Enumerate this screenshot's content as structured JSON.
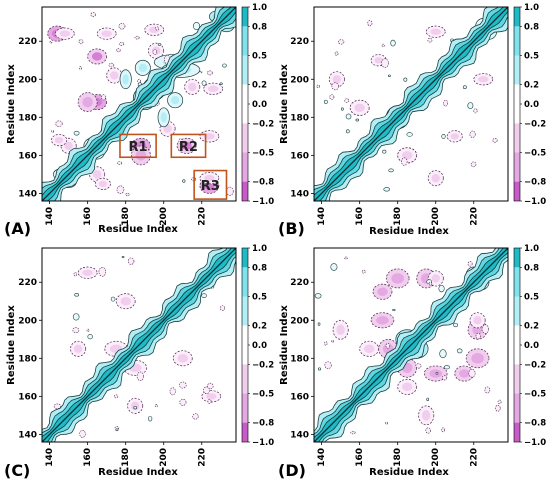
{
  "figure": {
    "panel_letters": [
      "(A)",
      "(B)",
      "(C)",
      "(D)"
    ]
  },
  "colorbar": {
    "ticks": [
      "1.0",
      "0.8",
      "0.5",
      "0.2",
      "0.0",
      "−0.2",
      "−0.5",
      "−0.8",
      "−1.0"
    ],
    "tick_values": [
      1.0,
      0.8,
      0.5,
      0.2,
      0.0,
      -0.2,
      -0.5,
      -0.8,
      -1.0
    ],
    "positive_colors": [
      "#ffffff",
      "#dff7fb",
      "#b2eef5",
      "#7fe2ec",
      "#44d0da",
      "#1fbac6"
    ],
    "negative_colors": [
      "#ffffff",
      "#fbeefa",
      "#f1cdee",
      "#e4a8e2",
      "#d67fd6",
      "#c85bc9"
    ]
  },
  "chart_data": [
    {
      "type": "heatmap",
      "panel": "A",
      "title": "",
      "xlabel": "Residue Index",
      "ylabel": "Residue Index",
      "xlim": [
        136,
        238
      ],
      "ylim": [
        136,
        238
      ],
      "xticks": [
        140,
        160,
        180,
        200,
        220
      ],
      "yticks": [
        140,
        160,
        180,
        200,
        220
      ],
      "colorbar_range": [
        -1.0,
        1.0
      ],
      "regions": [
        {
          "label": "R1",
          "x": [
            177,
            196
          ],
          "y": [
            159,
            171
          ]
        },
        {
          "label": "R2",
          "x": [
            204,
            222
          ],
          "y": [
            159,
            171
          ]
        },
        {
          "label": "R3",
          "x": [
            216,
            233
          ],
          "y": [
            137,
            152
          ]
        }
      ],
      "positive_blobs": [
        {
          "x": 195,
          "y": 195,
          "value": 0.5,
          "sx": 6,
          "sy": 6
        },
        {
          "x": 218,
          "y": 218,
          "value": 0.45,
          "sx": 5,
          "sy": 5
        },
        {
          "x": 172,
          "y": 172,
          "value": 0.4,
          "sx": 5,
          "sy": 5
        },
        {
          "x": 190,
          "y": 190,
          "value": 0.4,
          "sx": 6,
          "sy": 6
        },
        {
          "x": 205,
          "y": 209,
          "value": 0.35,
          "sx": 10,
          "sy": 4
        },
        {
          "x": 228,
          "y": 233,
          "value": 0.4,
          "sx": 4,
          "sy": 3
        },
        {
          "x": 146,
          "y": 150,
          "value": 0.3,
          "sx": 4,
          "sy": 3
        },
        {
          "x": 162,
          "y": 165,
          "value": 0.3,
          "sx": 4,
          "sy": 4
        },
        {
          "x": 206,
          "y": 189,
          "value": 0.3,
          "sx": 4,
          "sy": 4
        },
        {
          "x": 180,
          "y": 200,
          "value": 0.25,
          "sx": 3,
          "sy": 5
        }
      ],
      "negative_blobs": [
        {
          "x": 188,
          "y": 165,
          "value": -0.55,
          "sx": 5,
          "sy": 4
        },
        {
          "x": 212,
          "y": 165,
          "value": -0.5,
          "sx": 5,
          "sy": 4
        },
        {
          "x": 224,
          "y": 144,
          "value": -0.55,
          "sx": 5,
          "sy": 4
        },
        {
          "x": 160,
          "y": 188,
          "value": -0.4,
          "sx": 5,
          "sy": 5
        },
        {
          "x": 148,
          "y": 224,
          "value": -0.35,
          "sx": 5,
          "sy": 3
        },
        {
          "x": 170,
          "y": 224,
          "value": -0.3,
          "sx": 5,
          "sy": 3
        },
        {
          "x": 195,
          "y": 226,
          "value": -0.35,
          "sx": 5,
          "sy": 3
        },
        {
          "x": 150,
          "y": 165,
          "value": -0.35,
          "sx": 4,
          "sy": 4
        },
        {
          "x": 215,
          "y": 196,
          "value": -0.3,
          "sx": 4,
          "sy": 4
        },
        {
          "x": 174,
          "y": 202,
          "value": -0.3,
          "sx": 4,
          "sy": 4
        },
        {
          "x": 168,
          "y": 145,
          "value": -0.3,
          "sx": 4,
          "sy": 3
        },
        {
          "x": 140,
          "y": 140,
          "value": -0.2,
          "sx": 3,
          "sy": 3
        }
      ]
    },
    {
      "type": "heatmap",
      "panel": "B",
      "title": "",
      "xlabel": "Residue Index",
      "ylabel": "Residue Index",
      "xlim": [
        136,
        238
      ],
      "ylim": [
        136,
        238
      ],
      "xticks": [
        140,
        160,
        180,
        200,
        220
      ],
      "yticks": [
        140,
        160,
        180,
        200,
        220
      ],
      "colorbar_range": [
        -1.0,
        1.0
      ],
      "positive_blobs": [
        {
          "x": 180,
          "y": 180,
          "value": 0.45,
          "sx": 6,
          "sy": 6
        },
        {
          "x": 195,
          "y": 195,
          "value": 0.3,
          "sx": 5,
          "sy": 5
        },
        {
          "x": 165,
          "y": 165,
          "value": 0.35,
          "sx": 4,
          "sy": 4
        },
        {
          "x": 225,
          "y": 228,
          "value": 0.3,
          "sx": 4,
          "sy": 4
        }
      ],
      "negative_blobs": [
        {
          "x": 160,
          "y": 185,
          "value": -0.35,
          "sx": 5,
          "sy": 4
        },
        {
          "x": 185,
          "y": 160,
          "value": -0.3,
          "sx": 5,
          "sy": 4
        },
        {
          "x": 200,
          "y": 225,
          "value": -0.3,
          "sx": 5,
          "sy": 3
        },
        {
          "x": 148,
          "y": 200,
          "value": -0.25,
          "sx": 4,
          "sy": 4
        },
        {
          "x": 210,
          "y": 170,
          "value": -0.25,
          "sx": 4,
          "sy": 3
        }
      ]
    },
    {
      "type": "heatmap",
      "panel": "C",
      "title": "",
      "xlabel": "Residue Index",
      "ylabel": "Residue Index",
      "xlim": [
        136,
        238
      ],
      "ylim": [
        136,
        238
      ],
      "xticks": [
        140,
        160,
        180,
        200,
        220
      ],
      "yticks": [
        140,
        160,
        180,
        200,
        220
      ],
      "colorbar_range": [
        -1.0,
        1.0
      ],
      "positive_blobs": [
        {
          "x": 190,
          "y": 190,
          "value": 0.35,
          "sx": 5,
          "sy": 5
        },
        {
          "x": 175,
          "y": 175,
          "value": 0.3,
          "sx": 4,
          "sy": 4
        },
        {
          "x": 210,
          "y": 210,
          "value": 0.3,
          "sx": 5,
          "sy": 5
        },
        {
          "x": 148,
          "y": 148,
          "value": 0.35,
          "sx": 5,
          "sy": 5
        }
      ],
      "negative_blobs": [
        {
          "x": 155,
          "y": 185,
          "value": -0.3,
          "sx": 4,
          "sy": 4
        },
        {
          "x": 185,
          "y": 175,
          "value": -0.35,
          "sx": 6,
          "sy": 4
        },
        {
          "x": 210,
          "y": 180,
          "value": -0.3,
          "sx": 5,
          "sy": 4
        },
        {
          "x": 160,
          "y": 225,
          "value": -0.25,
          "sx": 5,
          "sy": 3
        }
      ]
    },
    {
      "type": "heatmap",
      "panel": "D",
      "title": "",
      "xlabel": "Residue Index",
      "ylabel": "Residue Index",
      "xlim": [
        136,
        238
      ],
      "ylim": [
        136,
        238
      ],
      "xticks": [
        140,
        160,
        180,
        200,
        220
      ],
      "yticks": [
        140,
        160,
        180,
        200,
        220
      ],
      "colorbar_range": [
        -1.0,
        1.0
      ],
      "positive_blobs": [
        {
          "x": 190,
          "y": 185,
          "value": 0.45,
          "sx": 6,
          "sy": 5
        },
        {
          "x": 205,
          "y": 205,
          "value": 0.35,
          "sx": 5,
          "sy": 5
        },
        {
          "x": 220,
          "y": 224,
          "value": 0.35,
          "sx": 4,
          "sy": 4
        },
        {
          "x": 165,
          "y": 162,
          "value": 0.3,
          "sx": 4,
          "sy": 4
        }
      ],
      "negative_blobs": [
        {
          "x": 180,
          "y": 222,
          "value": -0.45,
          "sx": 6,
          "sy": 5
        },
        {
          "x": 195,
          "y": 222,
          "value": -0.4,
          "sx": 5,
          "sy": 5
        },
        {
          "x": 175,
          "y": 185,
          "value": -0.45,
          "sx": 5,
          "sy": 5
        },
        {
          "x": 200,
          "y": 172,
          "value": -0.45,
          "sx": 6,
          "sy": 4
        },
        {
          "x": 215,
          "y": 172,
          "value": -0.4,
          "sx": 5,
          "sy": 4
        },
        {
          "x": 185,
          "y": 165,
          "value": -0.35,
          "sx": 5,
          "sy": 4
        },
        {
          "x": 150,
          "y": 195,
          "value": -0.3,
          "sx": 4,
          "sy": 5
        },
        {
          "x": 222,
          "y": 200,
          "value": -0.3,
          "sx": 4,
          "sy": 4
        }
      ]
    }
  ]
}
